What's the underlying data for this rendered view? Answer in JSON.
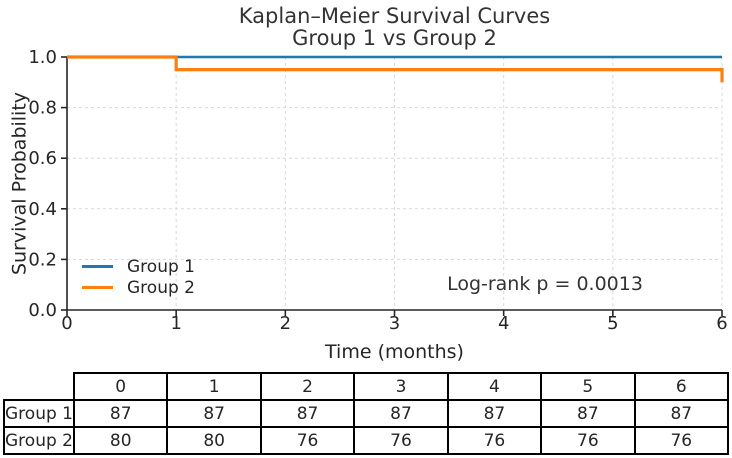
{
  "chart_data": {
    "type": "line",
    "subtype": "kaplan-meier-step",
    "title": "Kaplan–Meier Survival Curves",
    "subtitle": "Group 1 vs Group 2",
    "xlabel": "Time (months)",
    "ylabel": "Survival Probability",
    "xlim": [
      0,
      6
    ],
    "ylim": [
      0,
      1.0
    ],
    "grid": true,
    "grid_style": "dashed",
    "legend_position": "lower-left",
    "xticks": {
      "values": [
        0,
        1,
        2,
        3,
        4,
        5,
        6
      ],
      "labels": [
        "0",
        "1",
        "2",
        "3",
        "4",
        "5",
        "6"
      ]
    },
    "yticks": {
      "values": [
        0,
        0.2,
        0.4,
        0.6,
        0.8,
        1.0
      ],
      "labels": [
        "0.0",
        "0.2",
        "0.4",
        "0.6",
        "0.8",
        "1.0"
      ]
    },
    "series": [
      {
        "name": "Group 1",
        "color": "#1f77b4",
        "points": [
          [
            0,
            1.0
          ],
          [
            6,
            1.0
          ]
        ]
      },
      {
        "name": "Group 2",
        "color": "#ff7f0e",
        "points": [
          [
            0,
            1.0
          ],
          [
            1,
            1.0
          ],
          [
            1,
            0.95
          ],
          [
            6,
            0.95
          ],
          [
            6,
            0.9
          ]
        ]
      }
    ],
    "annotation": {
      "text": "Log-rank p = 0.0013",
      "x": 3.5,
      "y": 0.11
    }
  },
  "risk_table": {
    "columns": [
      "",
      "0",
      "1",
      "2",
      "3",
      "4",
      "5",
      "6"
    ],
    "rows": [
      {
        "label": "Group 1",
        "values": [
          "87",
          "87",
          "87",
          "87",
          "87",
          "87",
          "87"
        ]
      },
      {
        "label": "Group 2",
        "values": [
          "80",
          "80",
          "76",
          "76",
          "76",
          "76",
          "76"
        ]
      }
    ]
  },
  "colors": {
    "group1": "#1f77b4",
    "group2": "#ff7f0e",
    "grid": "#d9d9d9",
    "spine": "#262626",
    "text": "#262626",
    "title_text": "#333333",
    "table_border": "#000000",
    "background": "#ffffff"
  }
}
